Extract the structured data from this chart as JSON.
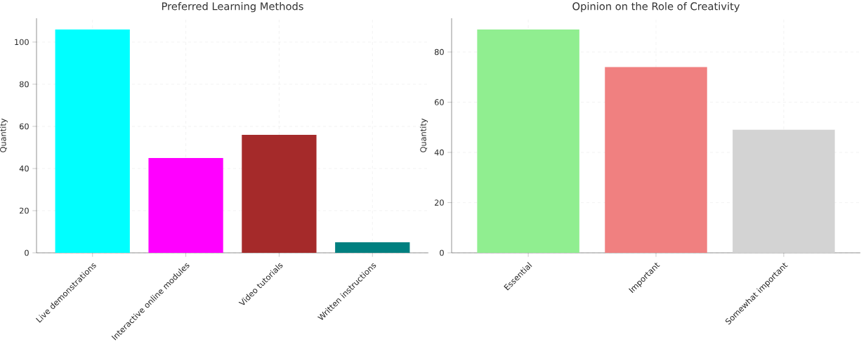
{
  "chart_data": [
    {
      "type": "bar",
      "title": "Preferred Learning Methods",
      "ylabel": "Quantity",
      "categories": [
        "Live demonstrations",
        "Interactive online modules",
        "Video tutorials",
        "Written instructions"
      ],
      "values": [
        106,
        45,
        56,
        5
      ],
      "colors": [
        "#00ffff",
        "#ff00ff",
        "#a52a2a",
        "#008080"
      ],
      "ylim": [
        0,
        111.3
      ],
      "yticks": [
        0,
        20,
        40,
        60,
        80,
        100
      ],
      "grid": true
    },
    {
      "type": "bar",
      "title": "Opinion on the Role of Creativity",
      "ylabel": "Quantity",
      "categories": [
        "Essential",
        "Important",
        "Somewhat important"
      ],
      "values": [
        89,
        74,
        49
      ],
      "colors": [
        "#90ee90",
        "#f08080",
        "#d3d3d3"
      ],
      "ylim": [
        0,
        93.45
      ],
      "yticks": [
        0,
        20,
        40,
        60,
        80
      ],
      "grid": true
    }
  ]
}
